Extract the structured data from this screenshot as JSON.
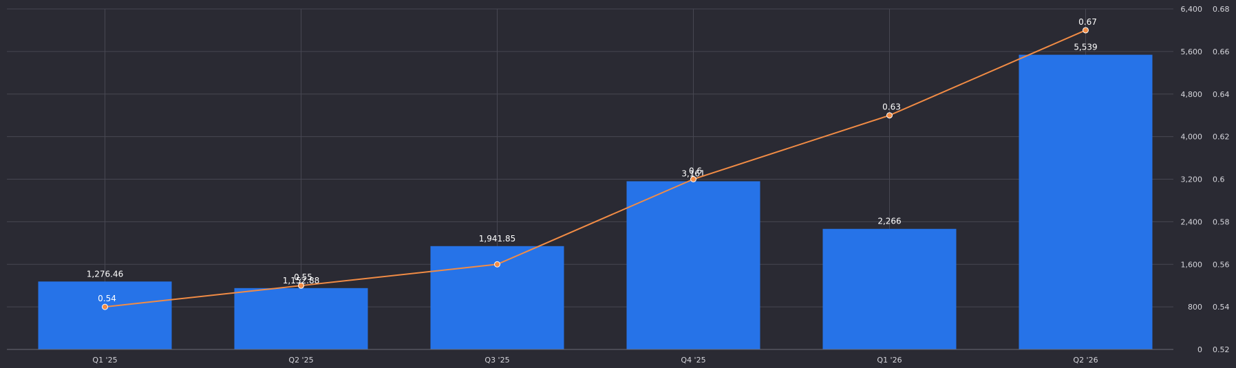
{
  "chart_data": {
    "type": "bar",
    "categories": [
      "Q1 '25",
      "Q2 '25",
      "Q3 '25",
      "Q4 '25",
      "Q1 '26",
      "Q2 '26"
    ],
    "series": [
      {
        "type": "bar",
        "axis": "left",
        "values": [
          1276.46,
          1152.88,
          1941.85,
          3161,
          2266,
          5539
        ],
        "labels": [
          "1,276.46",
          "1,152.88",
          "1,941.85",
          "3,161",
          "2,266",
          "5,539"
        ],
        "color": "#2673e8"
      },
      {
        "type": "line",
        "axis": "right",
        "values": [
          0.54,
          0.55,
          0.56,
          0.6,
          0.63,
          0.67
        ],
        "labels": [
          "0.54",
          "0.55",
          "",
          "0.6",
          "0.63",
          "0.67"
        ],
        "color": "#f28c45"
      }
    ],
    "y_left": {
      "range": [
        0,
        6400
      ],
      "ticks": [
        0,
        800,
        1600,
        2400,
        3200,
        4000,
        4800,
        5600,
        6400
      ],
      "tick_labels": [
        "0",
        "800",
        "1,600",
        "2,400",
        "3,200",
        "4,000",
        "4,800",
        "5,600",
        "6,400"
      ]
    },
    "y_right": {
      "range": [
        0.52,
        0.68
      ],
      "ticks": [
        0.52,
        0.54,
        0.56,
        0.58,
        0.6,
        0.62,
        0.64,
        0.66,
        0.68
      ],
      "tick_labels": [
        "0.52",
        "0.54",
        "0.56",
        "0.58",
        "0.6",
        "0.62",
        "0.64",
        "0.66",
        "0.68"
      ]
    },
    "grid": true,
    "legend": "none",
    "title": "",
    "xlabel": "",
    "ylabel": ""
  }
}
